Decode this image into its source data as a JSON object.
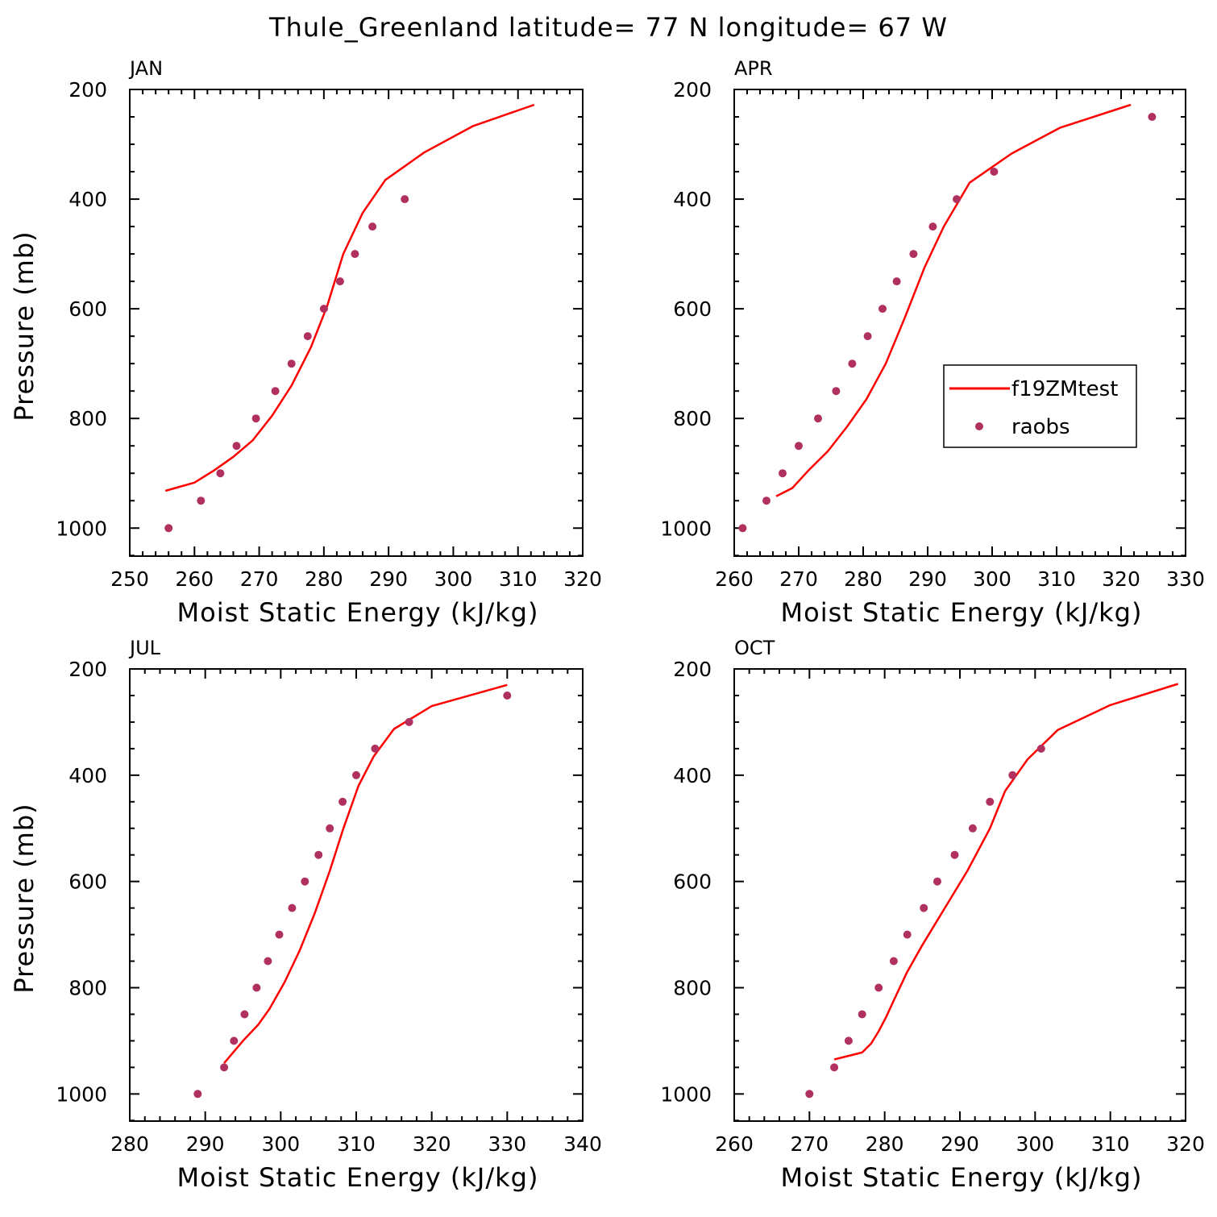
{
  "title": "Thule_Greenland  latitude= 77 N longitude= 67 W",
  "colors": {
    "model": "#ff0000",
    "obs": "#b03060",
    "axis": "#000000"
  },
  "legend": {
    "model_label": "f19ZMtest",
    "obs_label": "raobs",
    "placement": "right-middle of APR panel"
  },
  "chart_data": [
    {
      "type": "line",
      "panel": "JAN",
      "xlabel": "Moist Static Energy (kJ/kg)",
      "ylabel": "Pressure (mb)",
      "xlim": [
        250,
        320
      ],
      "ylim": [
        1000,
        200
      ],
      "y_reversed": true,
      "xticks": [
        250,
        260,
        270,
        280,
        290,
        300,
        310,
        320
      ],
      "yticks": [
        200,
        400,
        600,
        800,
        1000
      ],
      "series": [
        {
          "name": "f19ZMtest",
          "style": "line",
          "points": [
            [
              255.5,
              932
            ],
            [
              260,
              917
            ],
            [
              263,
              895
            ],
            [
              266,
              870
            ],
            [
              269,
              840
            ],
            [
              272,
              795
            ],
            [
              275,
              740
            ],
            [
              278,
              670
            ],
            [
              280.5,
              595
            ],
            [
              283,
              500
            ],
            [
              286,
              425
            ],
            [
              289.5,
              365
            ],
            [
              295.5,
              315
            ],
            [
              303,
              267
            ],
            [
              312.5,
              228
            ]
          ]
        },
        {
          "name": "raobs",
          "style": "marker",
          "points": [
            [
              256,
              1000
            ],
            [
              261,
              950
            ],
            [
              264,
              900
            ],
            [
              266.5,
              850
            ],
            [
              269.5,
              800
            ],
            [
              272.5,
              750
            ],
            [
              275,
              700
            ],
            [
              277.5,
              650
            ],
            [
              280,
              600
            ],
            [
              282.5,
              550
            ],
            [
              284.8,
              500
            ],
            [
              287.5,
              450
            ],
            [
              292.5,
              400
            ]
          ]
        }
      ]
    },
    {
      "type": "line",
      "panel": "APR",
      "xlabel": "Moist Static Energy (kJ/kg)",
      "ylabel": "",
      "xlim": [
        260,
        330
      ],
      "ylim": [
        1000,
        200
      ],
      "y_reversed": true,
      "xticks": [
        260,
        270,
        280,
        290,
        300,
        310,
        320,
        330
      ],
      "yticks": [
        200,
        400,
        600,
        800,
        1000
      ],
      "series": [
        {
          "name": "f19ZMtest",
          "style": "line",
          "points": [
            [
              266.5,
              942
            ],
            [
              269,
              927
            ],
            [
              271.5,
              895
            ],
            [
              274.5,
              860
            ],
            [
              277.5,
              815
            ],
            [
              280.5,
              765
            ],
            [
              283.5,
              700
            ],
            [
              286.5,
              615
            ],
            [
              289.5,
              525
            ],
            [
              292.5,
              450
            ],
            [
              296.5,
              370
            ],
            [
              303,
              317
            ],
            [
              310.5,
              270
            ],
            [
              321.5,
              228
            ]
          ]
        },
        {
          "name": "raobs",
          "style": "marker",
          "points": [
            [
              261.3,
              1000
            ],
            [
              265,
              950
            ],
            [
              267.5,
              900
            ],
            [
              270,
              850
            ],
            [
              273,
              800
            ],
            [
              275.8,
              750
            ],
            [
              278.3,
              700
            ],
            [
              280.7,
              650
            ],
            [
              283,
              600
            ],
            [
              285.2,
              550
            ],
            [
              287.8,
              500
            ],
            [
              290.8,
              450
            ],
            [
              294.5,
              400
            ],
            [
              300.3,
              350
            ],
            [
              324.8,
              250
            ]
          ]
        }
      ]
    },
    {
      "type": "line",
      "panel": "JUL",
      "xlabel": "Moist Static Energy (kJ/kg)",
      "ylabel": "Pressure (mb)",
      "xlim": [
        280,
        340
      ],
      "ylim": [
        1000,
        200
      ],
      "y_reversed": true,
      "xticks": [
        280,
        290,
        300,
        310,
        320,
        330,
        340
      ],
      "yticks": [
        200,
        400,
        600,
        800,
        1000
      ],
      "series": [
        {
          "name": "f19ZMtest",
          "style": "line",
          "points": [
            [
              292.5,
              942
            ],
            [
              295,
              900
            ],
            [
              297,
              870
            ],
            [
              298.5,
              840
            ],
            [
              300.5,
              790
            ],
            [
              302.5,
              730
            ],
            [
              304.5,
              660
            ],
            [
              306.5,
              580
            ],
            [
              308.3,
              500
            ],
            [
              310.3,
              420
            ],
            [
              312.3,
              365
            ],
            [
              315,
              313
            ],
            [
              320,
              270
            ],
            [
              330,
              230
            ]
          ]
        },
        {
          "name": "raobs",
          "style": "marker",
          "points": [
            [
              289,
              1000
            ],
            [
              292.5,
              950
            ],
            [
              293.8,
              900
            ],
            [
              295.2,
              850
            ],
            [
              296.8,
              800
            ],
            [
              298.3,
              750
            ],
            [
              299.8,
              700
            ],
            [
              301.5,
              650
            ],
            [
              303.2,
              600
            ],
            [
              305,
              550
            ],
            [
              306.5,
              500
            ],
            [
              308.2,
              450
            ],
            [
              310,
              400
            ],
            [
              312.5,
              350
            ],
            [
              317,
              300
            ],
            [
              330,
              250
            ]
          ]
        }
      ]
    },
    {
      "type": "line",
      "panel": "OCT",
      "xlabel": "Moist Static Energy (kJ/kg)",
      "ylabel": "",
      "xlim": [
        260,
        320
      ],
      "ylim": [
        1000,
        200
      ],
      "y_reversed": true,
      "xticks": [
        260,
        270,
        280,
        290,
        300,
        310,
        320
      ],
      "yticks": [
        200,
        400,
        600,
        800,
        1000
      ],
      "series": [
        {
          "name": "f19ZMtest",
          "style": "line",
          "points": [
            [
              273.3,
              935
            ],
            [
              277,
              922
            ],
            [
              278.2,
              905
            ],
            [
              279.2,
              882
            ],
            [
              280.2,
              855
            ],
            [
              281.5,
              815
            ],
            [
              283,
              770
            ],
            [
              285,
              720
            ],
            [
              288,
              650
            ],
            [
              291,
              580
            ],
            [
              294,
              500
            ],
            [
              296,
              430
            ],
            [
              299,
              370
            ],
            [
              303,
              315
            ],
            [
              310,
              268
            ],
            [
              319,
              228
            ]
          ]
        },
        {
          "name": "raobs",
          "style": "marker",
          "points": [
            [
              270,
              1000
            ],
            [
              273.3,
              950
            ],
            [
              275.2,
              900
            ],
            [
              277,
              850
            ],
            [
              279.2,
              800
            ],
            [
              281.2,
              750
            ],
            [
              283,
              700
            ],
            [
              285.2,
              650
            ],
            [
              287,
              600
            ],
            [
              289.3,
              550
            ],
            [
              291.7,
              500
            ],
            [
              294,
              450
            ],
            [
              297,
              400
            ],
            [
              300.8,
              350
            ]
          ]
        }
      ]
    }
  ]
}
